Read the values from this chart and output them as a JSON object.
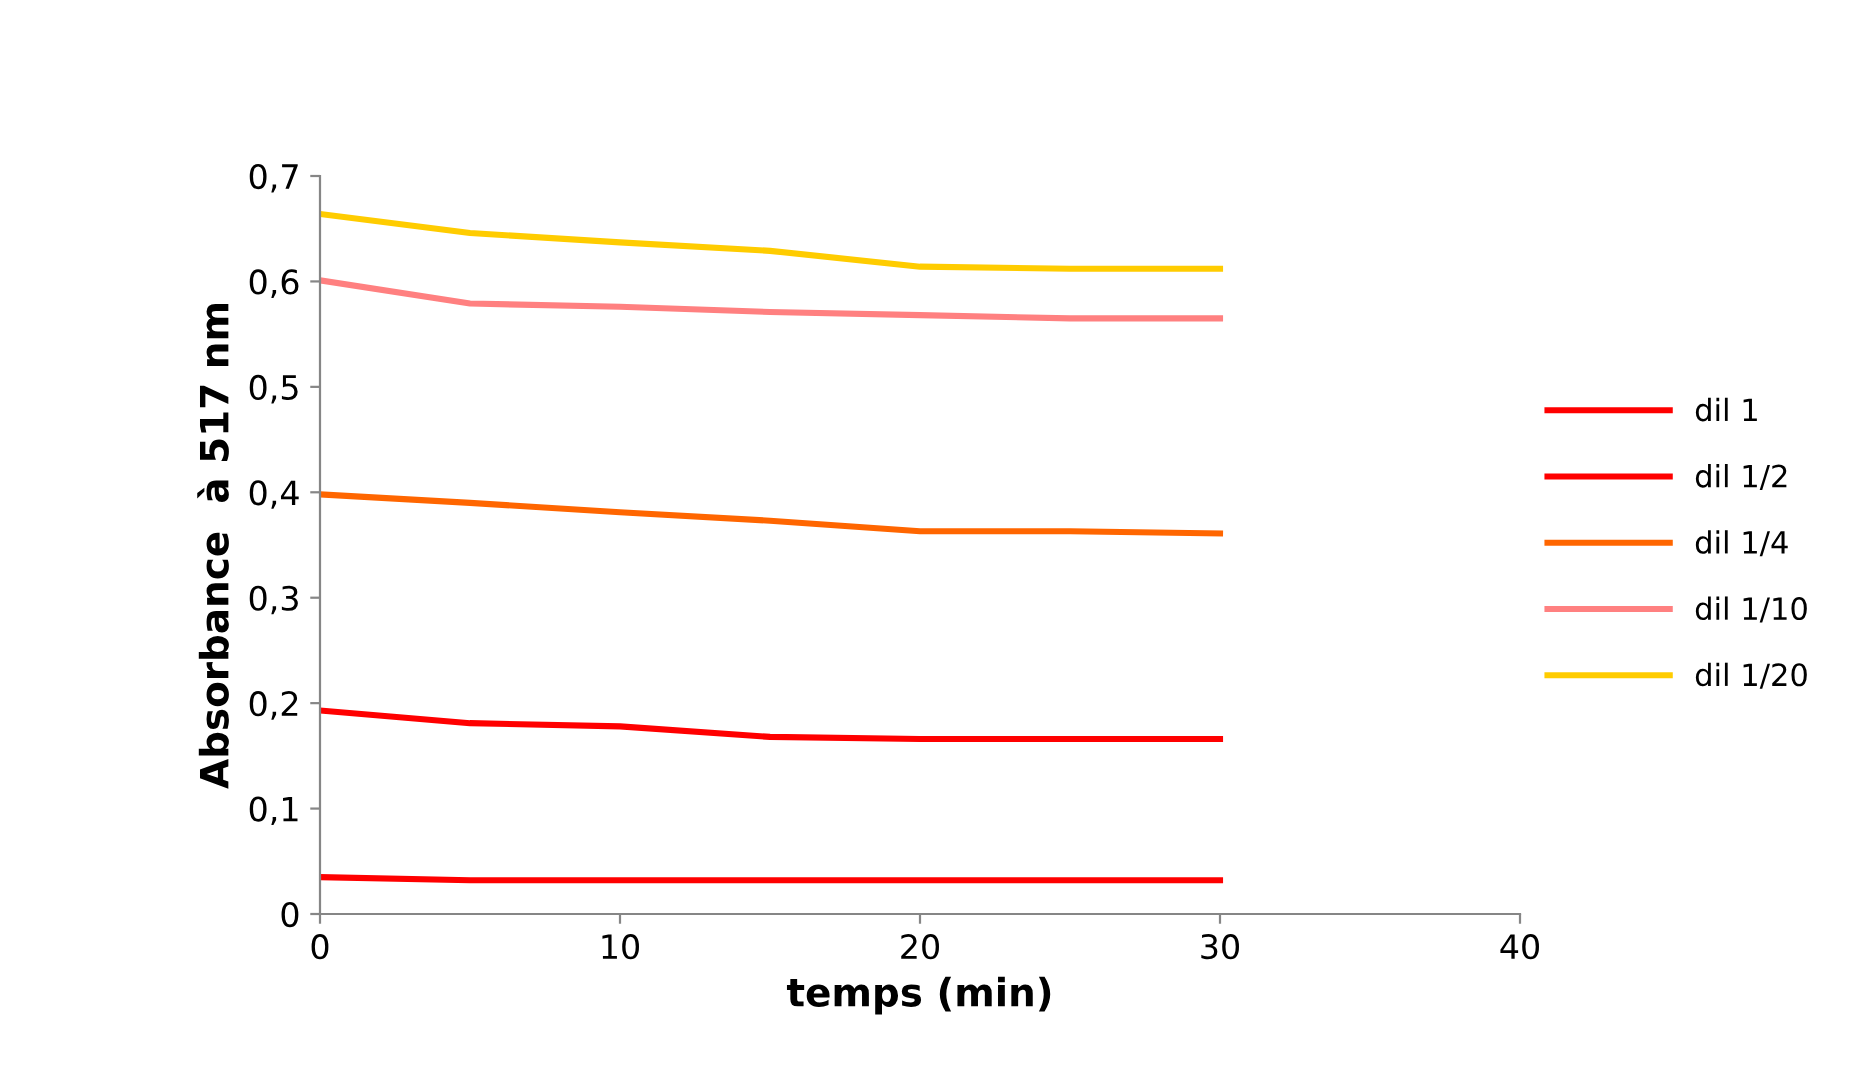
{
  "chart_data": {
    "type": "line",
    "xlabel": "temps (min)",
    "ylabel": "Absorbance  à 517 nm",
    "x": [
      0,
      5,
      10,
      15,
      20,
      25,
      30
    ],
    "series": [
      {
        "name": "dil 1",
        "color": "#ff0000",
        "values": [
          0.035,
          0.032,
          0.032,
          0.032,
          0.032,
          0.032,
          0.032
        ]
      },
      {
        "name": "dil 1/2",
        "color": "#ff0000",
        "values": [
          0.193,
          0.181,
          0.178,
          0.168,
          0.166,
          0.166,
          0.166
        ]
      },
      {
        "name": "dil 1/4",
        "color": "#ff6600",
        "values": [
          0.398,
          0.39,
          0.381,
          0.373,
          0.363,
          0.363,
          0.361
        ]
      },
      {
        "name": "dil 1/10",
        "color": "#ff8080",
        "values": [
          0.601,
          0.579,
          0.576,
          0.571,
          0.568,
          0.565,
          0.565
        ]
      },
      {
        "name": "dil 1/20",
        "color": "#ffcc00",
        "values": [
          0.664,
          0.646,
          0.637,
          0.629,
          0.614,
          0.612,
          0.612
        ]
      }
    ],
    "xlim": [
      0,
      40
    ],
    "xticks": [
      0,
      10,
      20,
      30,
      40
    ],
    "ylim": [
      0,
      0.7
    ],
    "yticks": [
      0,
      {
        "value": 0.1,
        "label": "0,1"
      },
      {
        "value": 0.2,
        "label": "0,2"
      },
      {
        "value": 0.3,
        "label": "0,3"
      },
      {
        "value": 0.4,
        "label": "0,4"
      },
      {
        "value": 0.5,
        "label": "0,5"
      },
      {
        "value": 0.6,
        "label": "0,6"
      },
      {
        "value": 0.7,
        "label": "0,7"
      }
    ],
    "grid": false,
    "legend": "right",
    "marker": "none",
    "line_style": "solid"
  }
}
